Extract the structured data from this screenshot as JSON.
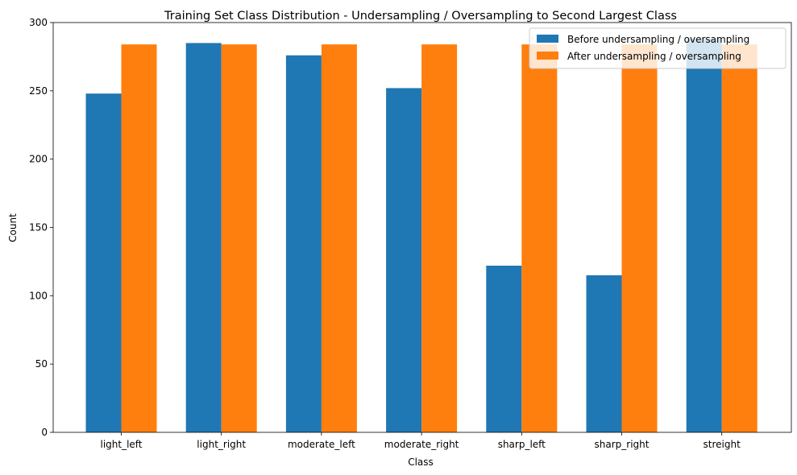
{
  "chart_data": {
    "type": "bar",
    "title": "Training Set Class Distribution - Undersampling / Oversampling to Second Largest Class",
    "xlabel": "Class",
    "ylabel": "Count",
    "categories": [
      "light_left",
      "light_right",
      "moderate_left",
      "moderate_right",
      "sharp_left",
      "sharp_right",
      "streight"
    ],
    "series": [
      {
        "name": "Before undersampling / oversampling",
        "color": "#1f77b4",
        "values": [
          248,
          285,
          276,
          252,
          122,
          115,
          288
        ]
      },
      {
        "name": "After undersampling / oversampling",
        "color": "#ff7f0e",
        "values": [
          284,
          284,
          284,
          284,
          284,
          284,
          284
        ]
      }
    ],
    "ylim": [
      0,
      300
    ],
    "yticks": [
      0,
      50,
      100,
      150,
      200,
      250,
      300
    ],
    "grid": false,
    "legend_position": "top-right"
  }
}
